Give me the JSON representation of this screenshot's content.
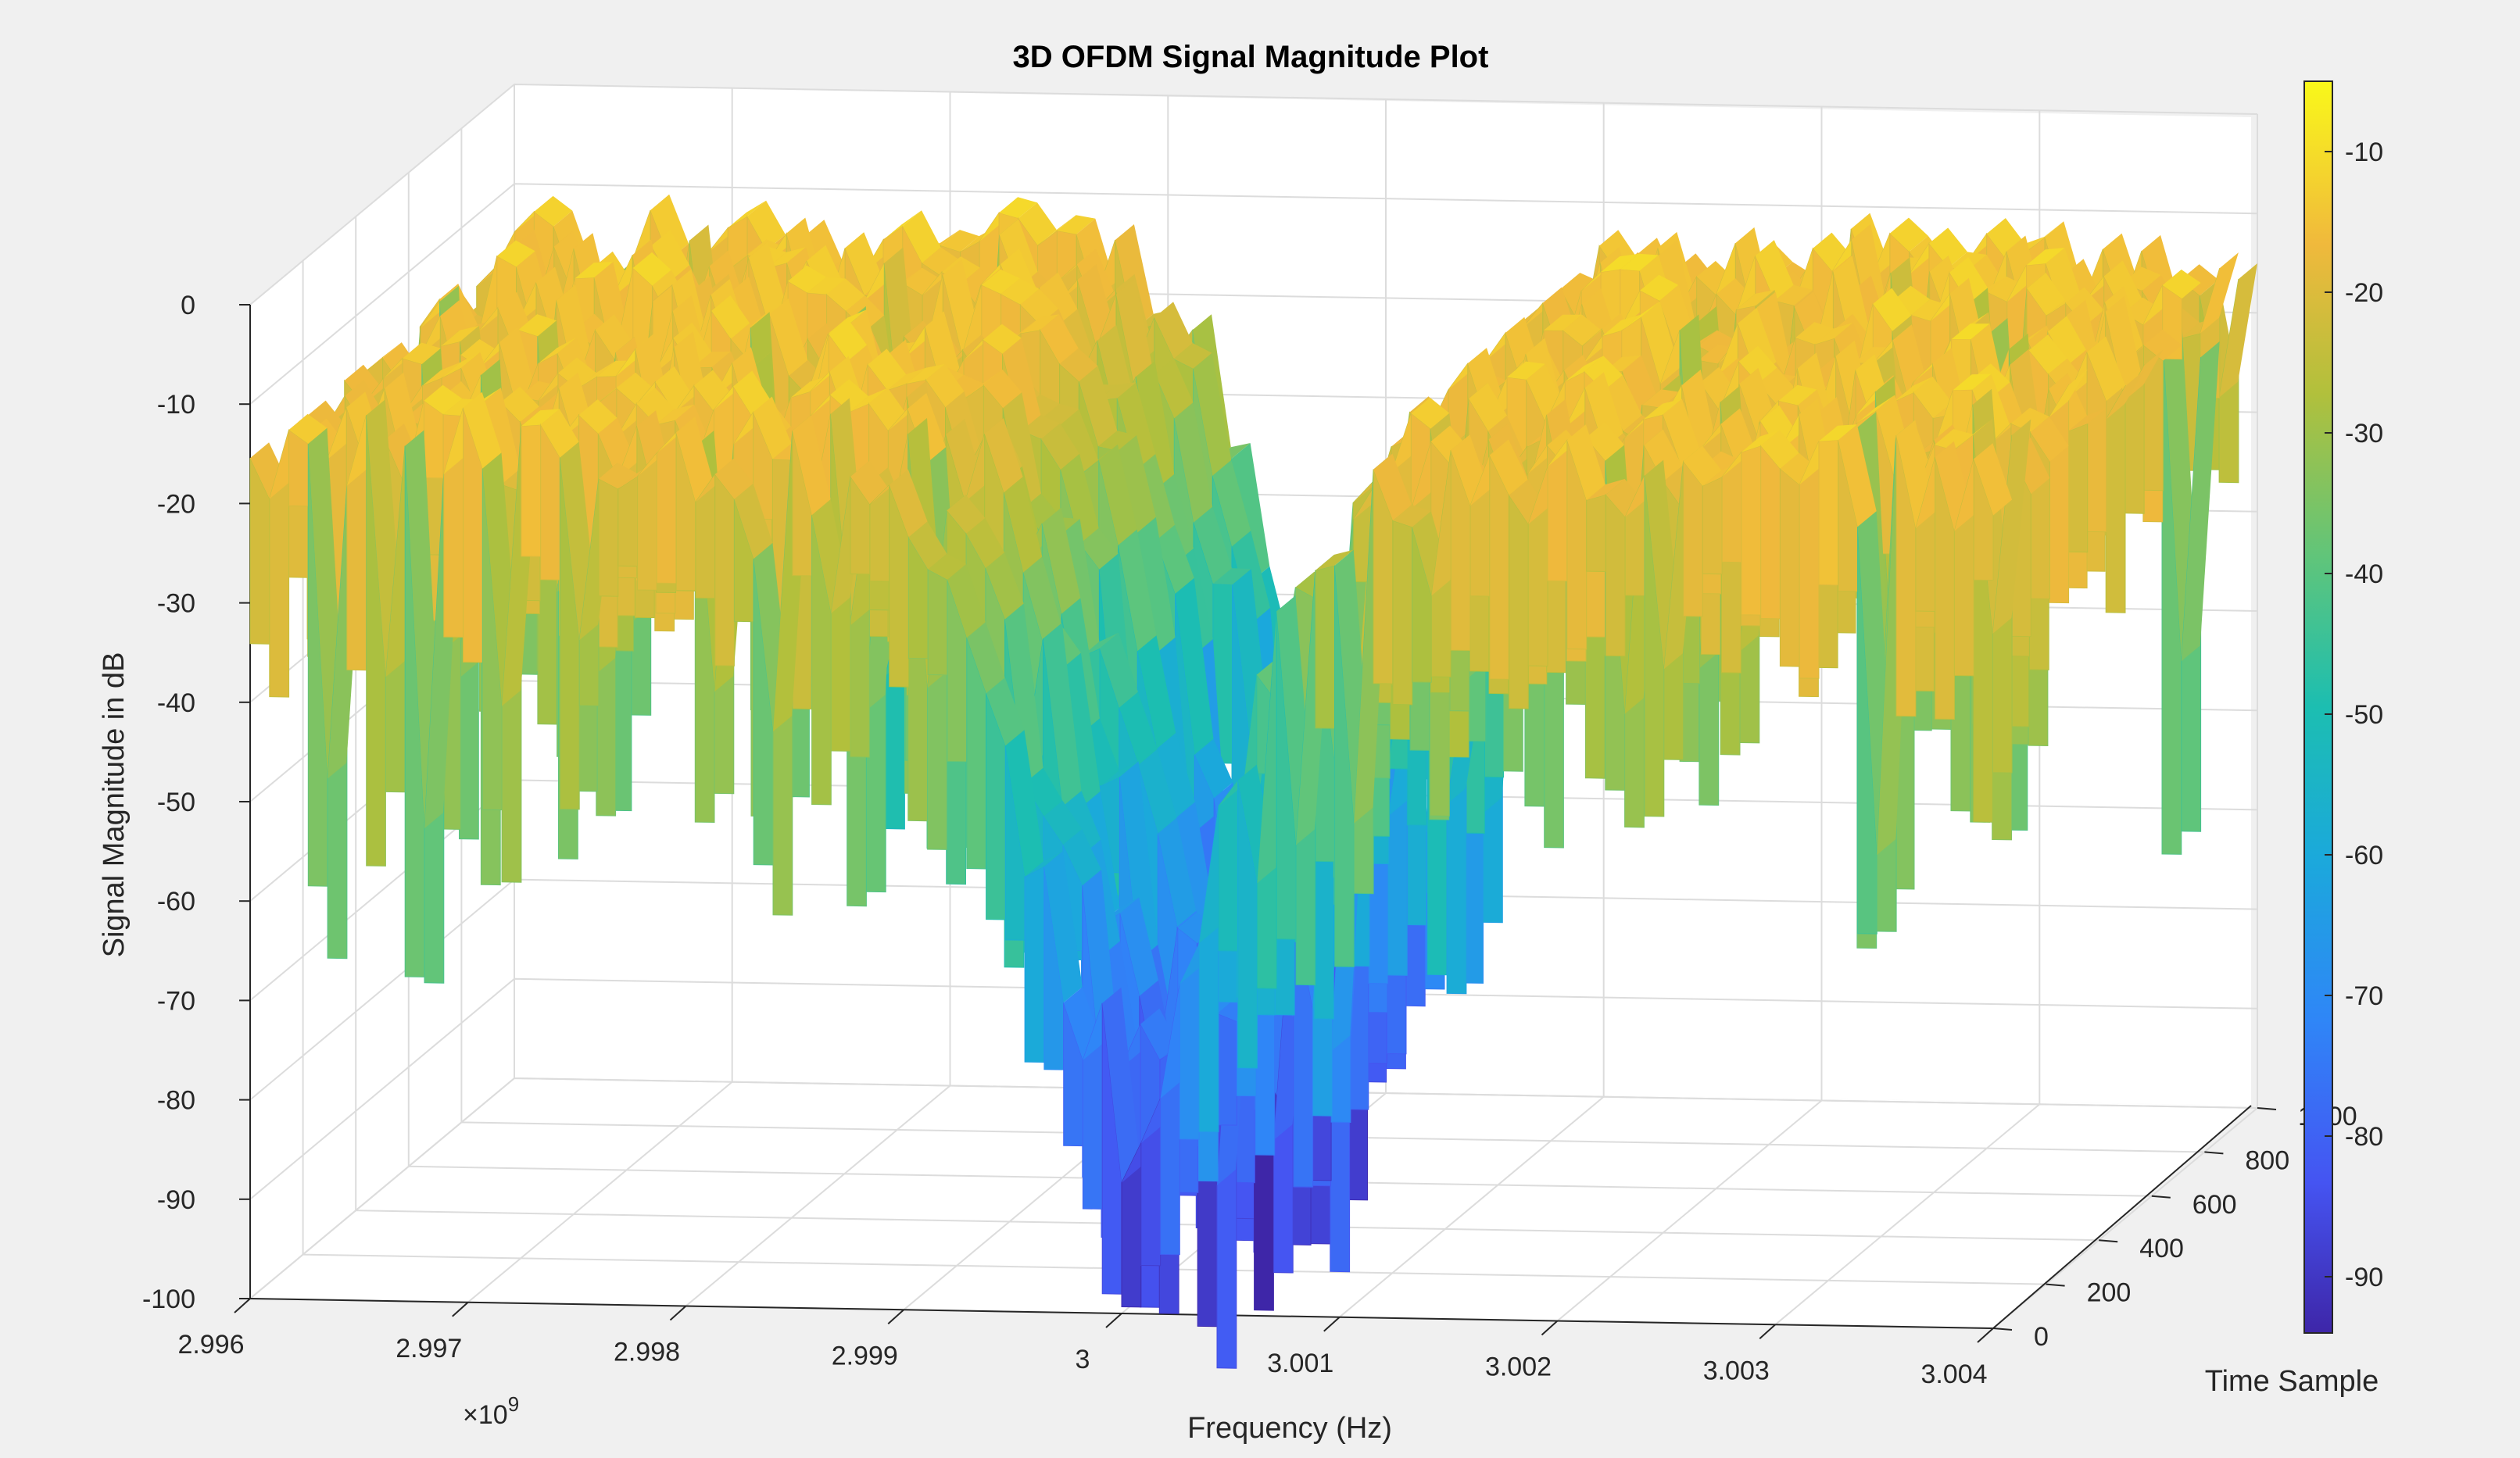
{
  "chart_data": {
    "type": "surface",
    "title": "3D OFDM Signal Magnitude Plot",
    "xlabel": "Frequency (Hz)",
    "ylabel": "Time Sample",
    "zlabel": "Signal Magnitude in dB",
    "x_exponent_label": "×10",
    "x_exponent_power": "9",
    "xlim": [
      2.996,
      3.004
    ],
    "x_ticks": [
      "2.996",
      "2.997",
      "2.998",
      "2.999",
      "3",
      "3.001",
      "3.002",
      "3.003",
      "3.004"
    ],
    "x_tick_values": [
      2.996,
      2.997,
      2.998,
      2.999,
      3.0,
      3.001,
      3.002,
      3.003,
      3.004
    ],
    "ylim": [
      0,
      1000
    ],
    "y_ticks": [
      "0",
      "200",
      "400",
      "600",
      "800",
      "1000"
    ],
    "y_tick_values": [
      0,
      200,
      400,
      600,
      800,
      1000
    ],
    "zlim": [
      -100,
      0
    ],
    "z_ticks": [
      "0",
      "-10",
      "-20",
      "-30",
      "-40",
      "-50",
      "-60",
      "-70",
      "-80",
      "-90",
      "-100"
    ],
    "z_tick_values": [
      0,
      -10,
      -20,
      -30,
      -40,
      -50,
      -60,
      -70,
      -80,
      -90,
      -100
    ],
    "colorbar": {
      "range": [
        -94,
        -5
      ],
      "ticks": [
        "-10",
        "-20",
        "-30",
        "-40",
        "-50",
        "-60",
        "-70",
        "-80",
        "-90"
      ],
      "tick_values": [
        -10,
        -20,
        -30,
        -40,
        -50,
        -60,
        -70,
        -80,
        -90
      ],
      "colormap": "parula"
    },
    "grid": true,
    "view": "3d",
    "surface_description": {
      "plateau_level_db": -15,
      "notch_center_frequency": 3.0,
      "notch_min_db": -88
    }
  }
}
